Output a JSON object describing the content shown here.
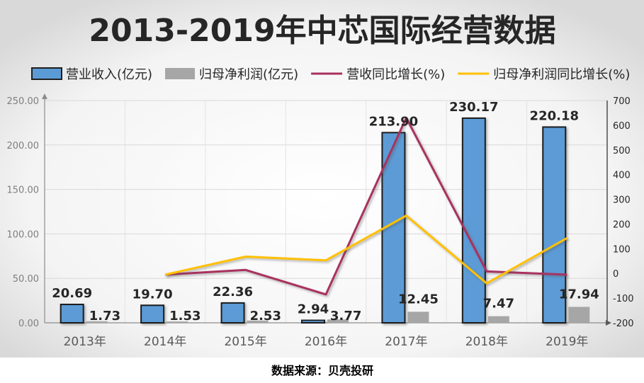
{
  "source_note": "数据来源：贝壳投研",
  "colors": {
    "revenue_bar": "#5b9bd5",
    "profit_bar": "#a6a6a6",
    "revenue_growth_line": "#a9305f",
    "profit_growth_line": "#ffc000"
  },
  "chart_data": {
    "type": "bar",
    "title": "2013-2019年中芯国际经营数据",
    "categories": [
      "2013年",
      "2014年",
      "2015年",
      "2016年",
      "2017年",
      "2018年",
      "2019年"
    ],
    "series": [
      {
        "name": "营业收入(亿元)",
        "type": "bar",
        "axis": "left",
        "values": [
          20.69,
          19.7,
          22.36,
          2.94,
          213.9,
          230.17,
          220.18
        ],
        "labels": [
          "20.69",
          "19.70",
          "22.36",
          "2.94",
          "213.90",
          "230.17",
          "220.18"
        ]
      },
      {
        "name": "归母净利润(亿元)",
        "type": "bar",
        "axis": "left",
        "values": [
          1.73,
          1.53,
          2.53,
          3.77,
          12.45,
          7.47,
          17.94
        ],
        "labels": [
          "1.73",
          "1.53",
          "2.53",
          "3.77",
          "12.45",
          "7.47",
          "17.94"
        ]
      },
      {
        "name": "营收同比增长(%)",
        "type": "line",
        "axis": "right",
        "values": [
          null,
          -5,
          14,
          -85,
          630,
          8,
          -5
        ]
      },
      {
        "name": "归母净利润同比增长(%)",
        "type": "line",
        "axis": "right",
        "values": [
          null,
          -5,
          68,
          53,
          234,
          -40,
          143
        ]
      }
    ],
    "y_left": {
      "min": 0,
      "max": 250,
      "ticks": [
        "0.00",
        "50.00",
        "100.00",
        "150.00",
        "200.00",
        "250.00"
      ]
    },
    "y_right": {
      "min": -200,
      "max": 700,
      "ticks": [
        "-200",
        "-100",
        "0",
        "100",
        "200",
        "300",
        "400",
        "500",
        "600",
        "700"
      ]
    },
    "grid": true,
    "legend_position": "top"
  }
}
